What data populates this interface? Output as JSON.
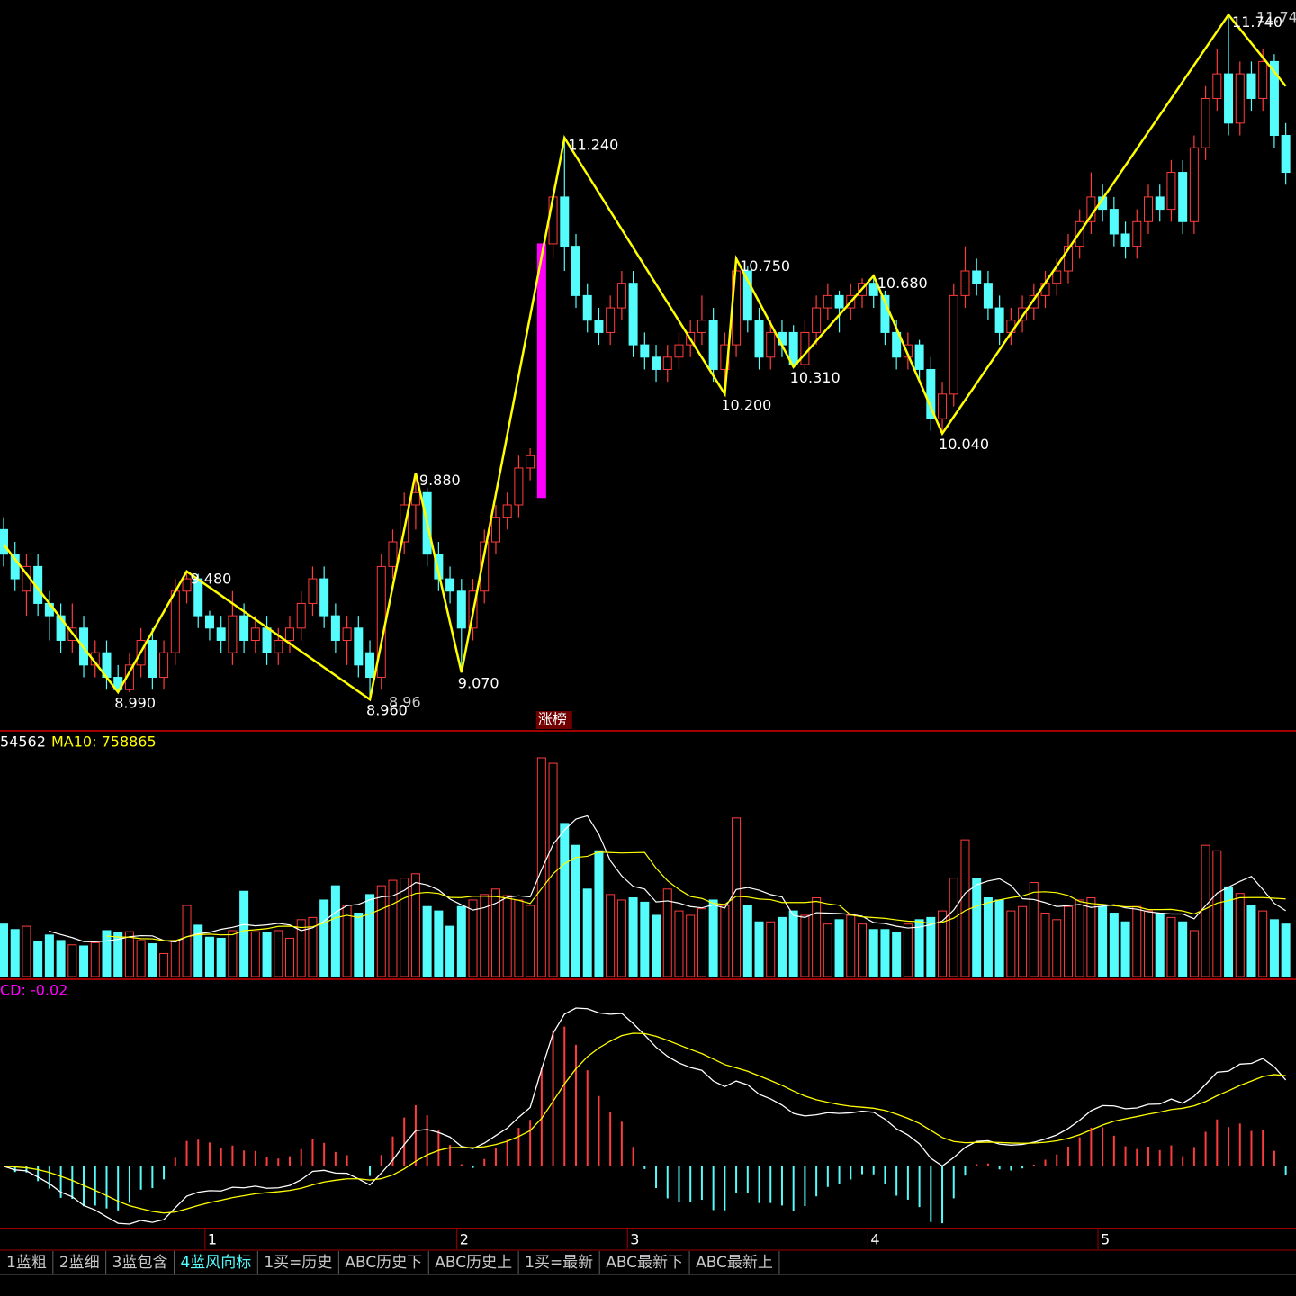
{
  "chart_data": {
    "type": "candlestick",
    "up_color": "#ff3c3c",
    "down_color": "#54fcfc",
    "zigzag_color": "#ffff00",
    "ylim": [
      8.84,
      11.8
    ],
    "candles": [
      [
        9.65,
        9.7,
        9.5,
        9.55
      ],
      [
        9.55,
        9.6,
        9.4,
        9.45
      ],
      [
        9.4,
        9.55,
        9.3,
        9.5
      ],
      [
        9.5,
        9.55,
        9.3,
        9.35
      ],
      [
        9.35,
        9.4,
        9.2,
        9.3
      ],
      [
        9.3,
        9.35,
        9.15,
        9.2
      ],
      [
        9.2,
        9.35,
        9.15,
        9.25
      ],
      [
        9.25,
        9.3,
        9.05,
        9.1
      ],
      [
        9.1,
        9.2,
        9.05,
        9.15
      ],
      [
        9.15,
        9.2,
        9.0,
        9.05
      ],
      [
        9.05,
        9.1,
        8.99,
        9.0
      ],
      [
        9.0,
        9.15,
        8.99,
        9.1
      ],
      [
        9.1,
        9.25,
        9.05,
        9.2
      ],
      [
        9.2,
        9.25,
        9.0,
        9.05
      ],
      [
        9.05,
        9.2,
        9.0,
        9.15
      ],
      [
        9.15,
        9.45,
        9.1,
        9.4
      ],
      [
        9.4,
        9.48,
        9.35,
        9.45
      ],
      [
        9.45,
        9.47,
        9.25,
        9.3
      ],
      [
        9.3,
        9.32,
        9.2,
        9.25
      ],
      [
        9.25,
        9.3,
        9.15,
        9.2
      ],
      [
        9.15,
        9.4,
        9.1,
        9.3
      ],
      [
        9.3,
        9.35,
        9.15,
        9.2
      ],
      [
        9.2,
        9.3,
        9.15,
        9.25
      ],
      [
        9.25,
        9.3,
        9.1,
        9.15
      ],
      [
        9.15,
        9.25,
        9.1,
        9.2
      ],
      [
        9.2,
        9.3,
        9.15,
        9.25
      ],
      [
        9.25,
        9.4,
        9.2,
        9.35
      ],
      [
        9.35,
        9.5,
        9.3,
        9.45
      ],
      [
        9.45,
        9.5,
        9.25,
        9.3
      ],
      [
        9.3,
        9.35,
        9.15,
        9.2
      ],
      [
        9.2,
        9.3,
        9.1,
        9.25
      ],
      [
        9.25,
        9.3,
        9.05,
        9.1
      ],
      [
        9.15,
        9.2,
        8.96,
        9.05
      ],
      [
        9.05,
        9.55,
        9.0,
        9.5
      ],
      [
        9.5,
        9.65,
        9.45,
        9.6
      ],
      [
        9.6,
        9.8,
        9.55,
        9.75
      ],
      [
        9.75,
        9.88,
        9.65,
        9.8
      ],
      [
        9.8,
        9.82,
        9.5,
        9.55
      ],
      [
        9.55,
        9.6,
        9.4,
        9.45
      ],
      [
        9.45,
        9.5,
        9.35,
        9.4
      ],
      [
        9.4,
        9.45,
        9.07,
        9.25
      ],
      [
        9.25,
        9.45,
        9.2,
        9.4
      ],
      [
        9.4,
        9.65,
        9.35,
        9.6
      ],
      [
        9.6,
        9.75,
        9.55,
        9.7
      ],
      [
        9.7,
        9.8,
        9.65,
        9.75
      ],
      [
        9.75,
        9.95,
        9.7,
        9.9
      ],
      [
        9.9,
        9.98,
        9.85,
        9.95
      ],
      [
        9.78,
        10.81,
        9.78,
        10.81
      ],
      [
        10.81,
        11.05,
        10.75,
        11.0
      ],
      [
        11.0,
        11.24,
        10.7,
        10.8
      ],
      [
        10.8,
        10.85,
        10.55,
        10.6
      ],
      [
        10.6,
        10.65,
        10.45,
        10.5
      ],
      [
        10.5,
        10.55,
        10.4,
        10.45
      ],
      [
        10.45,
        10.6,
        10.4,
        10.55
      ],
      [
        10.55,
        10.7,
        10.5,
        10.65
      ],
      [
        10.65,
        10.7,
        10.35,
        10.4
      ],
      [
        10.4,
        10.45,
        10.3,
        10.35
      ],
      [
        10.35,
        10.4,
        10.25,
        10.3
      ],
      [
        10.3,
        10.4,
        10.25,
        10.35
      ],
      [
        10.35,
        10.45,
        10.3,
        10.4
      ],
      [
        10.4,
        10.5,
        10.35,
        10.45
      ],
      [
        10.45,
        10.6,
        10.4,
        10.5
      ],
      [
        10.5,
        10.55,
        10.25,
        10.3
      ],
      [
        10.3,
        10.45,
        10.2,
        10.4
      ],
      [
        10.4,
        10.75,
        10.35,
        10.7
      ],
      [
        10.7,
        10.72,
        10.45,
        10.5
      ],
      [
        10.5,
        10.55,
        10.3,
        10.35
      ],
      [
        10.35,
        10.5,
        10.3,
        10.45
      ],
      [
        10.45,
        10.5,
        10.35,
        10.4
      ],
      [
        10.45,
        10.48,
        10.31,
        10.32
      ],
      [
        10.32,
        10.5,
        10.3,
        10.45
      ],
      [
        10.45,
        10.6,
        10.4,
        10.55
      ],
      [
        10.55,
        10.65,
        10.5,
        10.6
      ],
      [
        10.6,
        10.62,
        10.45,
        10.55
      ],
      [
        10.55,
        10.65,
        10.5,
        10.6
      ],
      [
        10.6,
        10.67,
        10.55,
        10.65
      ],
      [
        10.65,
        10.68,
        10.55,
        10.6
      ],
      [
        10.6,
        10.62,
        10.4,
        10.45
      ],
      [
        10.45,
        10.5,
        10.3,
        10.35
      ],
      [
        10.35,
        10.45,
        10.3,
        10.4
      ],
      [
        10.4,
        10.42,
        10.25,
        10.3
      ],
      [
        10.3,
        10.35,
        10.05,
        10.1
      ],
      [
        10.1,
        10.25,
        10.04,
        10.2
      ],
      [
        10.2,
        10.65,
        10.15,
        10.6
      ],
      [
        10.6,
        10.8,
        10.55,
        10.7
      ],
      [
        10.7,
        10.75,
        10.6,
        10.65
      ],
      [
        10.65,
        10.7,
        10.5,
        10.55
      ],
      [
        10.55,
        10.6,
        10.4,
        10.45
      ],
      [
        10.45,
        10.55,
        10.4,
        10.5
      ],
      [
        10.5,
        10.6,
        10.45,
        10.55
      ],
      [
        10.55,
        10.65,
        10.5,
        10.6
      ],
      [
        10.6,
        10.7,
        10.55,
        10.65
      ],
      [
        10.65,
        10.75,
        10.6,
        10.7
      ],
      [
        10.7,
        10.85,
        10.65,
        10.8
      ],
      [
        10.8,
        10.95,
        10.75,
        10.9
      ],
      [
        10.9,
        11.1,
        10.85,
        11.0
      ],
      [
        11.0,
        11.05,
        10.9,
        10.95
      ],
      [
        10.95,
        11.0,
        10.8,
        10.85
      ],
      [
        10.85,
        10.9,
        10.75,
        10.8
      ],
      [
        10.8,
        10.95,
        10.75,
        10.9
      ],
      [
        10.9,
        11.05,
        10.85,
        11.0
      ],
      [
        11.0,
        11.05,
        10.9,
        10.95
      ],
      [
        10.95,
        11.15,
        10.9,
        11.1
      ],
      [
        11.1,
        11.15,
        10.85,
        10.9
      ],
      [
        10.9,
        11.25,
        10.85,
        11.2
      ],
      [
        11.2,
        11.45,
        11.15,
        11.4
      ],
      [
        11.4,
        11.6,
        11.35,
        11.5
      ],
      [
        11.5,
        11.74,
        11.25,
        11.3
      ],
      [
        11.3,
        11.55,
        11.25,
        11.5
      ],
      [
        11.5,
        11.55,
        11.35,
        11.4
      ],
      [
        11.4,
        11.6,
        11.35,
        11.55
      ],
      [
        11.55,
        11.58,
        11.2,
        11.25
      ],
      [
        11.25,
        11.3,
        11.05,
        11.1
      ]
    ],
    "zigzag": {
      "x": [
        0,
        10,
        16,
        32,
        36,
        40,
        49,
        63,
        64,
        69,
        76,
        82,
        107,
        112
      ],
      "values": [
        9.59,
        8.99,
        9.48,
        8.96,
        9.88,
        9.07,
        11.24,
        10.2,
        10.75,
        10.31,
        10.68,
        10.04,
        11.74,
        11.45
      ],
      "value_labels": [
        null,
        "8.990",
        "9.480",
        "8.960",
        "9.880",
        "9.070",
        "11.240",
        "10.200",
        "10.750",
        "10.310",
        "10.680",
        "10.040",
        "11.740",
        null
      ]
    },
    "annotations": [
      "8.96",
      "11.74"
    ],
    "limit_up": {
      "x": 47,
      "label": "涨榜",
      "color": "#ff00ff"
    },
    "xticks": [
      {
        "value": 17.6,
        "label": "1"
      },
      {
        "value": 39.6,
        "label": "2"
      },
      {
        "value": 54.5,
        "label": "3"
      },
      {
        "value": 75.5,
        "label": "4"
      },
      {
        "value": 95.6,
        "label": "5"
      }
    ],
    "volume": {
      "header": [
        "54562",
        "MA10: 758865"
      ],
      "ylim": [
        0,
        2000000
      ],
      "values": [
        480000,
        430000,
        460000,
        320000,
        380000,
        330000,
        290000,
        280000,
        310000,
        420000,
        400000,
        410000,
        330000,
        300000,
        210000,
        330000,
        650000,
        470000,
        360000,
        350000,
        420000,
        780000,
        410000,
        400000,
        420000,
        350000,
        520000,
        540000,
        700000,
        830000,
        650000,
        580000,
        750000,
        830000,
        880000,
        900000,
        940000,
        640000,
        600000,
        460000,
        640000,
        700000,
        750000,
        800000,
        740000,
        700000,
        650000,
        2000000,
        1950000,
        1400000,
        1200000,
        800000,
        1150000,
        750000,
        700000,
        720000,
        680000,
        560000,
        800000,
        600000,
        560000,
        620000,
        700000,
        650000,
        1450000,
        650000,
        500000,
        500000,
        540000,
        600000,
        560000,
        720000,
        480000,
        520000,
        560000,
        480000,
        430000,
        430000,
        400000,
        480000,
        520000,
        540000,
        600000,
        900000,
        1250000,
        900000,
        720000,
        700000,
        600000,
        640000,
        860000,
        580000,
        520000,
        640000,
        700000,
        720000,
        640000,
        580000,
        500000,
        640000,
        600000,
        580000,
        540000,
        500000,
        420000,
        1200000,
        1150000,
        820000,
        760000,
        650000,
        600000,
        520000,
        480000
      ]
    },
    "macd": {
      "header": "CD: -0.02"
    }
  },
  "toolbar": {
    "tabs": [
      "1蓝粗",
      "2蓝细",
      "3蓝包含",
      "4蓝风向标",
      "1买=历史",
      "ABC历史下",
      "ABC历史上",
      "1买=最新",
      "ABC最新下",
      "ABC最新上"
    ],
    "active_tab": 3
  }
}
